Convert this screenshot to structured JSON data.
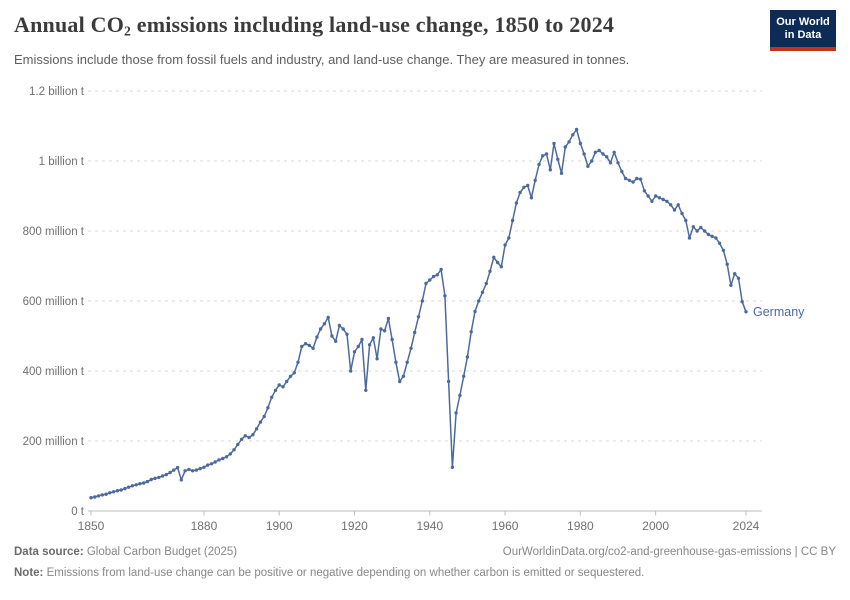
{
  "header": {
    "title_prefix": "Annual CO",
    "title_sub": "2",
    "title_suffix": " emissions including land-use change, 1850 to 2024",
    "subtitle": "Emissions include those from fossil fuels and industry, and land-use change. They are measured in tonnes."
  },
  "logo": {
    "line1": "Our World",
    "line2": "in Data",
    "bg_color": "#0d2b56",
    "accent_color": "#c5301f"
  },
  "chart_data": {
    "type": "line",
    "title": "Annual CO2 emissions including land-use change, 1850 to 2024",
    "ylabel": "",
    "xlabel": "",
    "unit": "tonnes",
    "values_unit": "million tonnes",
    "x_start": 1850,
    "x_end": 2024,
    "ylim_millions": [
      0,
      1200
    ],
    "grid": "dashed-horizontal",
    "legend": "end-of-line-label",
    "x_ticks": [
      1850,
      1880,
      1900,
      1920,
      1940,
      1960,
      1980,
      2000,
      2024
    ],
    "y_ticks": [
      {
        "value": 0,
        "label": "0 t"
      },
      {
        "value": 200,
        "label": "200 million t"
      },
      {
        "value": 400,
        "label": "400 million t"
      },
      {
        "value": 600,
        "label": "600 million t"
      },
      {
        "value": 800,
        "label": "800 million t"
      },
      {
        "value": 1000,
        "label": "1 billion t"
      },
      {
        "value": 1200,
        "label": "1.2 billion t"
      }
    ],
    "series": [
      {
        "name": "Germany",
        "color": "#4C6A9C",
        "values_millions": [
          38,
          40,
          43,
          46,
          48,
          52,
          55,
          58,
          60,
          64,
          68,
          72,
          75,
          78,
          80,
          84,
          90,
          93,
          96,
          100,
          104,
          110,
          117,
          124,
          89,
          115,
          119,
          115,
          117,
          121,
          125,
          131,
          135,
          140,
          146,
          150,
          155,
          163,
          175,
          190,
          205,
          215,
          210,
          218,
          235,
          254,
          270,
          295,
          325,
          345,
          360,
          355,
          370,
          385,
          395,
          425,
          470,
          478,
          473,
          465,
          497,
          520,
          535,
          553,
          500,
          485,
          530,
          520,
          505,
          400,
          455,
          470,
          490,
          345,
          475,
          495,
          435,
          520,
          515,
          550,
          490,
          425,
          370,
          385,
          425,
          465,
          510,
          555,
          600,
          650,
          660,
          670,
          675,
          690,
          615,
          370,
          125,
          280,
          330,
          385,
          440,
          512,
          570,
          600,
          625,
          650,
          685,
          725,
          710,
          698,
          760,
          780,
          830,
          880,
          910,
          925,
          930,
          895,
          945,
          990,
          1015,
          1020,
          975,
          1050,
          1005,
          965,
          1040,
          1055,
          1075,
          1090,
          1050,
          1020,
          985,
          1000,
          1025,
          1030,
          1020,
          1012,
          995,
          1025,
          995,
          970,
          950,
          945,
          940,
          950,
          948,
          915,
          900,
          885,
          900,
          895,
          890,
          885,
          875,
          860,
          875,
          850,
          830,
          780,
          812,
          800,
          810,
          800,
          790,
          785,
          780,
          765,
          745,
          705,
          645,
          678,
          665,
          598,
          569
        ]
      }
    ]
  },
  "footer": {
    "datasource_label": "Data source:",
    "datasource_value": " Global Carbon Budget (2025)",
    "rights": "OurWorldinData.org/co2-and-greenhouse-gas-emissions | CC BY",
    "note_label": "Note:",
    "note_value": " Emissions from land-use change can be positive or negative depending on whether carbon is emitted or sequestered."
  }
}
